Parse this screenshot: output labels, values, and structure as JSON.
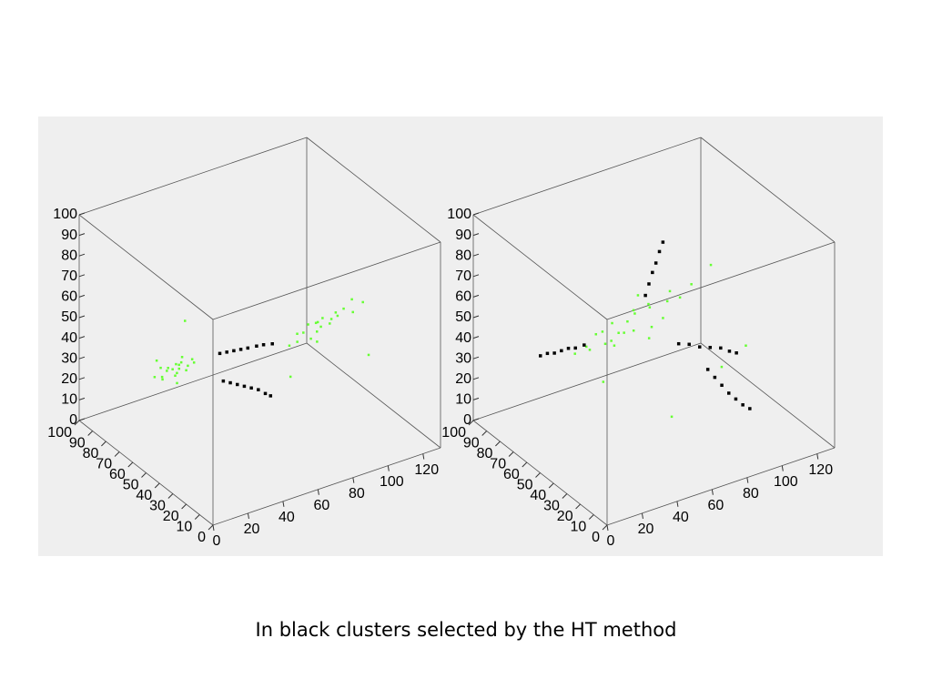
{
  "chart_data": [
    {
      "type": "scatter3d",
      "xlim": [
        0,
        130
      ],
      "ylim": [
        0,
        100
      ],
      "zlim": [
        0,
        100
      ],
      "xticks": [
        0,
        20,
        40,
        60,
        80,
        100,
        120
      ],
      "yticks": [
        0,
        10,
        20,
        30,
        40,
        50,
        60,
        70,
        80,
        90,
        100
      ],
      "zticks": [
        0,
        10,
        20,
        30,
        40,
        50,
        60,
        70,
        80,
        90,
        100
      ],
      "series": [
        {
          "color": "#66ff33",
          "x": [
            5,
            8,
            10,
            12,
            13,
            15,
            16,
            18,
            20,
            22,
            24,
            26,
            28,
            10,
            14,
            19,
            23,
            7,
            17,
            21,
            82,
            85,
            88,
            90,
            92,
            95,
            97,
            99,
            100,
            102,
            104,
            106,
            108,
            110,
            113,
            116,
            120,
            124,
            94,
            101,
            75,
            30,
            112
          ],
          "y": [
            50,
            48,
            52,
            50,
            47,
            53,
            49,
            51,
            46,
            54,
            50,
            48,
            52,
            55,
            45,
            50,
            53,
            47,
            49,
            51,
            50,
            48,
            52,
            50,
            47,
            53,
            49,
            51,
            50,
            46,
            54,
            50,
            48,
            52,
            50,
            47,
            53,
            50,
            45,
            55,
            40,
            60,
            30
          ],
          "z": [
            45,
            44,
            47,
            46,
            48,
            45,
            43,
            47,
            46,
            44,
            45,
            47,
            46,
            49,
            42,
            45,
            48,
            46,
            44,
            47,
            38,
            40,
            41,
            42,
            40,
            43,
            41,
            44,
            42,
            45,
            43,
            44,
            46,
            45,
            47,
            46,
            48,
            47,
            39,
            41,
            30,
            60,
            35
          ]
        },
        {
          "color": "#000000",
          "x": [
            42,
            46,
            50,
            54,
            58,
            63,
            67,
            72,
            44,
            48,
            52,
            56,
            60,
            64,
            68,
            71
          ],
          "y": [
            50,
            50,
            50,
            50,
            50,
            50,
            50,
            50,
            50,
            50,
            50,
            50,
            50,
            50,
            50,
            50
          ],
          "z": [
            46,
            45.5,
            45,
            44.5,
            44,
            43.5,
            43,
            42,
            32,
            30,
            28,
            26,
            24,
            22,
            19,
            17
          ]
        }
      ]
    },
    {
      "type": "scatter3d",
      "xlim": [
        0,
        130
      ],
      "ylim": [
        0,
        100
      ],
      "zlim": [
        0,
        100
      ],
      "xticks": [
        0,
        20,
        40,
        60,
        80,
        100,
        120
      ],
      "yticks": [
        0,
        10,
        20,
        30,
        40,
        50,
        60,
        70,
        80,
        90,
        100
      ],
      "zticks": [
        0,
        10,
        20,
        30,
        40,
        50,
        60,
        70,
        80,
        90,
        100
      ],
      "series": [
        {
          "color": "#66ff33",
          "x": [
            20,
            25,
            30,
            32,
            35,
            38,
            40,
            42,
            45,
            48,
            50,
            52,
            55,
            58,
            60,
            62,
            65,
            68,
            72,
            75,
            80,
            85,
            44,
            56,
            90,
            70,
            40,
            110,
            100,
            60
          ],
          "y": [
            50,
            48,
            52,
            50,
            47,
            53,
            49,
            51,
            46,
            54,
            50,
            48,
            52,
            55,
            45,
            50,
            53,
            47,
            49,
            51,
            50,
            48,
            52,
            50,
            40,
            60,
            55,
            40,
            45,
            30
          ],
          "z": [
            52,
            55,
            50,
            58,
            54,
            56,
            53,
            60,
            57,
            52,
            59,
            55,
            62,
            58,
            56,
            64,
            60,
            57,
            63,
            66,
            62,
            68,
            48,
            70,
            80,
            40,
            30,
            35,
            25,
            20
          ]
        },
        {
          "color": "#000000",
          "x": [
            0,
            4,
            8,
            12,
            16,
            20,
            25,
            60,
            62,
            64,
            66,
            68,
            70,
            79,
            85,
            91,
            97,
            103,
            108,
            112,
            88,
            92,
            96,
            100,
            104,
            108,
            112
          ],
          "y": [
            50,
            50,
            50,
            50,
            50,
            50,
            50,
            50,
            50,
            50,
            50,
            50,
            50,
            50,
            50,
            50,
            50,
            50,
            50,
            50,
            40,
            40,
            40,
            40,
            40,
            40,
            40
          ],
          "z": [
            57,
            57,
            56,
            56,
            56,
            55,
            55,
            69,
            74,
            79,
            83,
            88,
            92,
            40,
            38,
            35,
            33,
            31,
            28,
            26,
            30,
            25,
            20,
            15,
            11,
            7,
            4
          ]
        }
      ]
    }
  ],
  "caption": "In black clusters selected by the HT method"
}
